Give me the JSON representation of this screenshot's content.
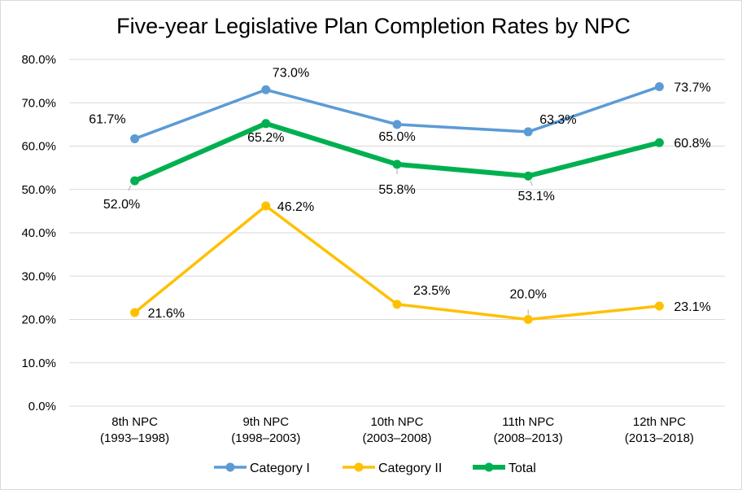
{
  "chart_data": {
    "type": "line",
    "title": "Five-year Legislative Plan Completion Rates by NPC",
    "xlabel": "",
    "ylabel": "",
    "ylim": [
      0,
      80
    ],
    "y_tick_labels": [
      "0.0%",
      "10.0%",
      "20.0%",
      "30.0%",
      "40.0%",
      "50.0%",
      "60.0%",
      "70.0%",
      "80.0%"
    ],
    "categories": [
      [
        "8th NPC",
        "(1993–1998)"
      ],
      [
        "9th NPC",
        "(1998–2003)"
      ],
      [
        "10th NPC",
        "(2003–2008)"
      ],
      [
        "11th NPC",
        "(2008–2013)"
      ],
      [
        "12th NPC",
        "(2013–2018)"
      ]
    ],
    "grid": true,
    "legend_position": "bottom",
    "series": [
      {
        "name": "Category I",
        "color": "#5b9bd5",
        "values": [
          61.7,
          73.0,
          65.0,
          63.3,
          73.7
        ],
        "labels": [
          "61.7%",
          "73.0%",
          "65.0%",
          "63.3%",
          "73.7%"
        ]
      },
      {
        "name": "Category II",
        "color": "#ffc000",
        "values": [
          21.6,
          46.2,
          23.5,
          20.0,
          23.1
        ],
        "labels": [
          "21.6%",
          "46.2%",
          "23.5%",
          "20.0%",
          "23.1%"
        ]
      },
      {
        "name": "Total",
        "color": "#00b050",
        "values": [
          52.0,
          65.2,
          55.8,
          53.1,
          60.8
        ],
        "labels": [
          "52.0%",
          "65.2%",
          "55.8%",
          "53.1%",
          "60.8%"
        ]
      }
    ]
  }
}
